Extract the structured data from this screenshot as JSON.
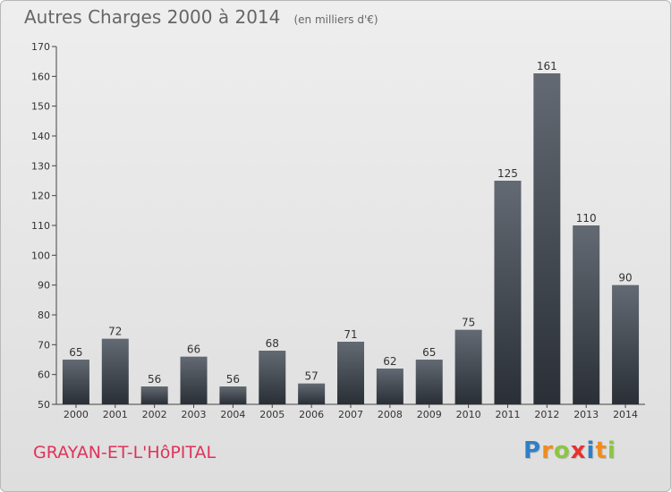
{
  "title": {
    "main": "Autres Charges 2000 à 2014",
    "unit": "(en milliers d'€)"
  },
  "commune": "GRAYAN-ET-L'HôPITAL",
  "logo": {
    "text": "Proxiti",
    "letters": [
      {
        "ch": "P",
        "color": "#2f7fc8"
      },
      {
        "ch": "r",
        "color": "#f08c1e"
      },
      {
        "ch": "o",
        "color": "#8cc63f"
      },
      {
        "ch": "x",
        "color": "#e8322d"
      },
      {
        "ch": "i",
        "color": "#2f7fc8"
      },
      {
        "ch": "t",
        "color": "#f08c1e"
      },
      {
        "ch": "i",
        "color": "#8cc63f"
      }
    ]
  },
  "colors": {
    "bar_top": "#636a73",
    "bar_bottom": "#2a2f36",
    "axis": "#444444",
    "text": "#333333",
    "commune": "#e0325a"
  },
  "chart_data": {
    "type": "bar",
    "title": "Autres Charges 2000 à 2014",
    "subtitle": "(en milliers d'€)",
    "categories": [
      "2000",
      "2001",
      "2002",
      "2003",
      "2004",
      "2005",
      "2006",
      "2007",
      "2008",
      "2009",
      "2010",
      "2011",
      "2012",
      "2013",
      "2014"
    ],
    "values": [
      65,
      72,
      56,
      66,
      56,
      68,
      57,
      71,
      62,
      65,
      75,
      125,
      161,
      110,
      90
    ],
    "ylim": [
      50,
      170
    ],
    "yticks": [
      50,
      60,
      70,
      80,
      90,
      100,
      110,
      120,
      130,
      140,
      150,
      160,
      170
    ],
    "grid": false,
    "legend": "none"
  }
}
